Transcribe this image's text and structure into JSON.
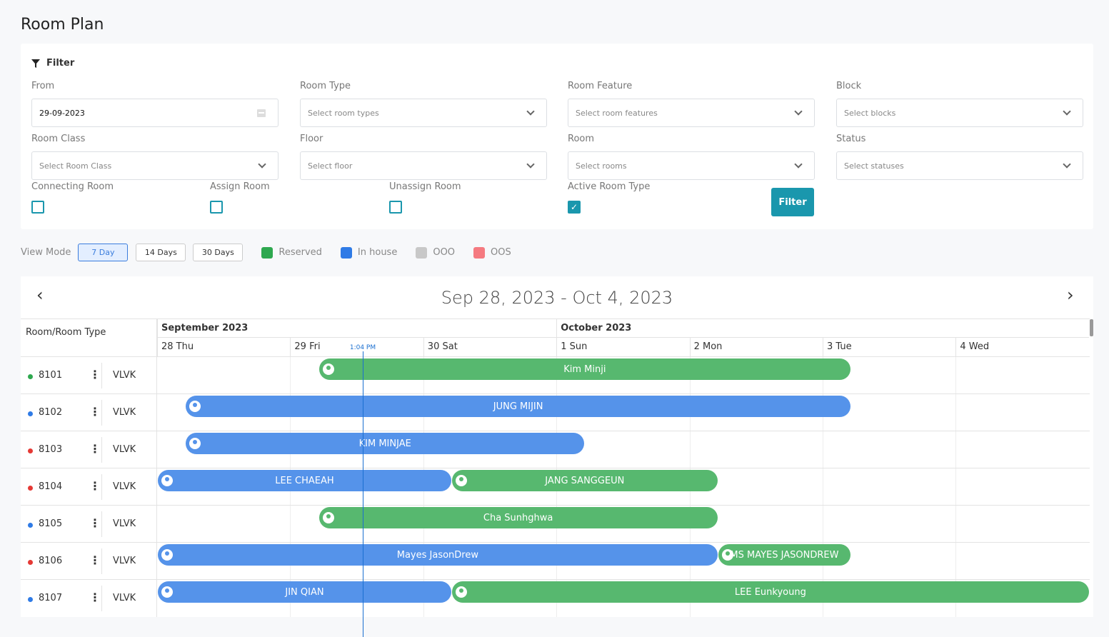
{
  "page_title": "Room Plan",
  "filter": {
    "heading": "Filter",
    "from": {
      "label": "From",
      "value": "29-09-2023"
    },
    "room_type": {
      "label": "Room Type",
      "placeholder": "Select room types"
    },
    "room_feature": {
      "label": "Room Feature",
      "placeholder": "Select room features"
    },
    "block": {
      "label": "Block",
      "placeholder": "Select blocks"
    },
    "room_class": {
      "label": "Room Class",
      "placeholder": "Select Room Class"
    },
    "floor": {
      "label": "Floor",
      "placeholder": "Select floor"
    },
    "room": {
      "label": "Room",
      "placeholder": "Select rooms"
    },
    "status": {
      "label": "Status",
      "placeholder": "Select statuses"
    },
    "connecting_room": {
      "label": "Connecting Room",
      "checked": false
    },
    "assign_room": {
      "label": "Assign Room",
      "checked": false
    },
    "unassign_room": {
      "label": "Unassign Room",
      "checked": false
    },
    "active_room_type": {
      "label": "Active Room Type",
      "checked": true
    },
    "button": "Filter"
  },
  "view_mode": {
    "label": "View Mode",
    "options": [
      "7 Day",
      "14 Days",
      "30 Days"
    ],
    "selected": "7 Day"
  },
  "legend": [
    {
      "label": "Reserved",
      "color": "#2ea84f"
    },
    {
      "label": "In house",
      "color": "#2f7be6"
    },
    {
      "label": "OOO",
      "color": "#c8c8c8"
    },
    {
      "label": "OOS",
      "color": "#f57a80"
    }
  ],
  "calendar": {
    "range": "Sep 28, 2023 - Oct 4, 2023",
    "header": "Room/Room Type",
    "months": [
      "September 2023",
      "October 2023"
    ],
    "days": [
      "28 Thu",
      "29 Fri",
      "30 Sat",
      "1 Sun",
      "2 Mon",
      "3 Tue",
      "4 Wed"
    ],
    "now_label": "1:04 PM",
    "rooms": [
      {
        "room": "8101",
        "type": "VLVK",
        "status_color": "#2ea84f",
        "bookings": [
          {
            "guest": "Kim Minji",
            "status": "reserved",
            "from_day": 1,
            "to_day": 5
          }
        ]
      },
      {
        "room": "8102",
        "type": "VLVK",
        "status_color": "#2f7be6",
        "bookings": [
          {
            "guest": "JUNG MIJIN",
            "status": "inhouse",
            "from_day": 0,
            "to_day": 5
          }
        ]
      },
      {
        "room": "8103",
        "type": "VLVK",
        "status_color": "#e53935",
        "bookings": [
          {
            "guest": "KIM MINJAE",
            "status": "inhouse",
            "from_day": 0,
            "to_day": 3
          }
        ]
      },
      {
        "room": "8104",
        "type": "VLVK",
        "status_color": "#e53935",
        "bookings": [
          {
            "guest": "LEE CHAEAH",
            "status": "inhouse",
            "from_day": -1,
            "to_day": 2
          },
          {
            "guest": "JANG SANGGEUN",
            "status": "reserved",
            "from_day": 2,
            "to_day": 4
          }
        ]
      },
      {
        "room": "8105",
        "type": "VLVK",
        "status_color": "#2f7be6",
        "bookings": [
          {
            "guest": "Cha Sunhghwa",
            "status": "reserved",
            "from_day": 1,
            "to_day": 4
          }
        ]
      },
      {
        "room": "8106",
        "type": "VLVK",
        "status_color": "#e53935",
        "bookings": [
          {
            "guest": "Mayes JasonDrew",
            "status": "inhouse",
            "from_day": -1,
            "to_day": 4
          },
          {
            "guest": "MS MAYES JASONDREW",
            "status": "reserved",
            "from_day": 4,
            "to_day": 5
          }
        ]
      },
      {
        "room": "8107",
        "type": "VLVK",
        "status_color": "#2f7be6",
        "bookings": [
          {
            "guest": "JIN QIAN",
            "status": "inhouse",
            "from_day": -1,
            "to_day": 2
          },
          {
            "guest": "LEE Eunkyoung",
            "status": "reserved",
            "from_day": 2,
            "to_day": 7
          }
        ]
      }
    ]
  },
  "bar_colors": {
    "reserved": "#57b86f",
    "inhouse": "#5593ea"
  }
}
